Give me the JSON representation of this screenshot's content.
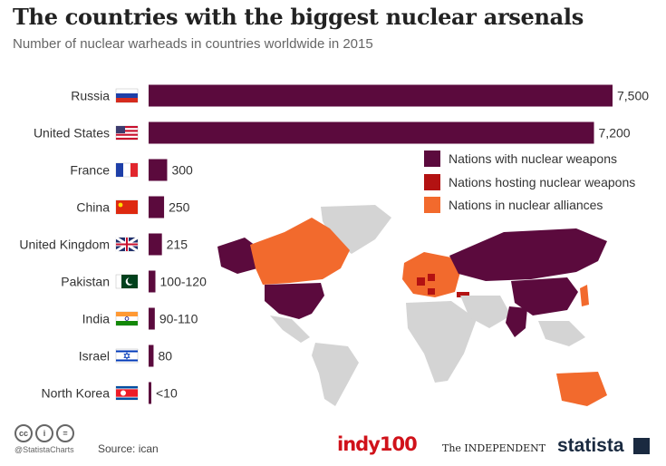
{
  "title": "The countries with the biggest nuclear arsenals",
  "subtitle": "Number of nuclear warheads in countries worldwide in 2015",
  "colors": {
    "bar": "#5b0a3d",
    "nuclear": "#5b0a3d",
    "hosting": "#b31212",
    "alliance": "#f26a2d",
    "other": "#d4d4d4"
  },
  "legend": [
    {
      "label": "Nations with nuclear weapons",
      "color": "#5b0a3d"
    },
    {
      "label": "Nations hosting nuclear weapons",
      "color": "#b31212"
    },
    {
      "label": "Nations in nuclear alliances",
      "color": "#f26a2d"
    }
  ],
  "chart_data": {
    "type": "bar",
    "orientation": "horizontal",
    "title": "The countries with the biggest nuclear arsenals",
    "subtitle": "Number of nuclear warheads in countries worldwide in 2015",
    "categories": [
      "Russia",
      "United States",
      "France",
      "China",
      "United Kingdom",
      "Pakistan",
      "India",
      "Israel",
      "North Korea"
    ],
    "values": [
      7500,
      7200,
      300,
      250,
      215,
      110,
      100,
      80,
      10
    ],
    "value_labels": [
      "7,500",
      "7,200",
      "300",
      "250",
      "215",
      "100-120",
      "90-110",
      "80",
      "<10"
    ],
    "flag_icons": [
      "flag-russia-icon",
      "flag-usa-icon",
      "flag-france-icon",
      "flag-china-icon",
      "flag-uk-icon",
      "flag-pakistan-icon",
      "flag-india-icon",
      "flag-israel-icon",
      "flag-north-korea-icon"
    ],
    "xlim": [
      0,
      7500
    ],
    "grid": false,
    "legend_position": "right"
  },
  "map": {
    "regions": [
      {
        "name": "USA",
        "status": "nuclear"
      },
      {
        "name": "Alaska",
        "status": "nuclear"
      },
      {
        "name": "Canada",
        "status": "alliance"
      },
      {
        "name": "Greenland",
        "status": "other"
      },
      {
        "name": "Mexico & Central America",
        "status": "other"
      },
      {
        "name": "South America",
        "status": "other"
      },
      {
        "name": "Russia",
        "status": "nuclear"
      },
      {
        "name": "Western Europe",
        "status": "alliance"
      },
      {
        "name": "Hosting states",
        "status": "hosting"
      },
      {
        "name": "Africa",
        "status": "other"
      },
      {
        "name": "Middle East",
        "status": "other"
      },
      {
        "name": "China",
        "status": "nuclear"
      },
      {
        "name": "India",
        "status": "nuclear"
      },
      {
        "name": "Southeast Asia",
        "status": "other"
      },
      {
        "name": "Japan & South Korea",
        "status": "alliance"
      },
      {
        "name": "Australia",
        "status": "alliance"
      }
    ]
  },
  "footer": {
    "cc_icons": [
      "cc",
      "i",
      "="
    ],
    "handle": "@StatistaCharts",
    "source": "Source: ican",
    "brand_indy": "indy100",
    "brand_independent": "The INDEPENDENT",
    "brand_statista": "statista"
  }
}
